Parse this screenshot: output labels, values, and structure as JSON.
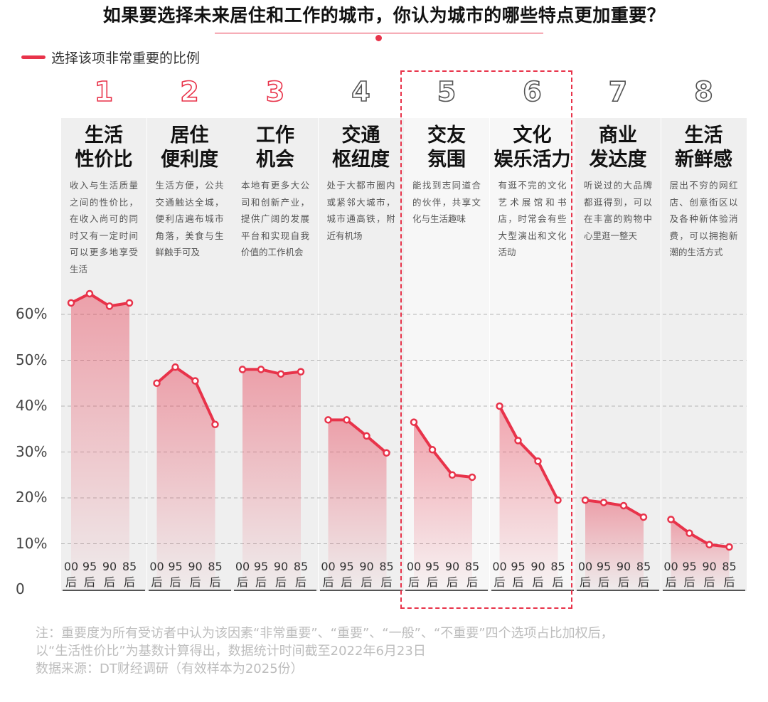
{
  "title": "如果要选择未来居住和工作的城市，你认为城市的哪些特点更加重要？",
  "colors": {
    "accent": "#e8334a",
    "panel": "#efefef",
    "panel_light": "#f7f7f7"
  },
  "chart_data": {
    "type": "line",
    "legend": "选择该项非常重要的比例",
    "legend_position": "top-left",
    "y_ticks": [
      "0",
      "10%",
      "20%",
      "30%",
      "40%",
      "50%",
      "60%"
    ],
    "ylim": [
      0,
      70
    ],
    "grid": true,
    "x_labels": [
      "00\n后",
      "95\n后",
      "90\n后",
      "85\n后"
    ],
    "highlighted_groups": [
      5,
      6
    ],
    "groups": [
      {
        "rank": "1",
        "name": "生活\n性价比",
        "desc": "收入与生活质量之间的性价比，在收入尚可的同时又有一定时间可以更多地享受生活",
        "values": [
          62.5,
          64.5,
          61.8,
          62.5
        ]
      },
      {
        "rank": "2",
        "name": "居住\n便利度",
        "desc": "生活方便，公共交通触达全城，便利店遍布城市角落，美食与生鲜触手可及",
        "values": [
          45.0,
          48.5,
          45.5,
          36.0
        ]
      },
      {
        "rank": "3",
        "name": "工作\n机会",
        "desc": "本地有更多大公司和创新产业，提供广阔的发展平台和实现自我价值的工作机会",
        "values": [
          48.0,
          48.0,
          47.0,
          47.5
        ]
      },
      {
        "rank": "4",
        "name": "交通\n枢纽度",
        "desc": "处于大都市圈内或紧邻大城市，城市通高铁，附近有机场",
        "values": [
          37.0,
          37.0,
          33.5,
          29.8
        ]
      },
      {
        "rank": "5",
        "name": "交友\n氛围",
        "desc": "能找到志同道合的伙伴，共享文化与生活趣味",
        "values": [
          36.5,
          30.5,
          25.0,
          24.5
        ]
      },
      {
        "rank": "6",
        "name": "文化\n娱乐活力",
        "desc": "有逛不完的文化艺术展馆和书店，时常会有些大型演出和文化活动",
        "values": [
          40.0,
          32.5,
          28.0,
          19.5
        ]
      },
      {
        "rank": "7",
        "name": "商业\n发达度",
        "desc": "听说过的大品牌都逛得到，可以在丰富的购物中心里逛一整天",
        "values": [
          19.5,
          19.0,
          18.3,
          15.8
        ]
      },
      {
        "rank": "8",
        "name": "生活\n新鲜感",
        "desc": "层出不穷的网红店、创意街区以及各种新体验消费，可以拥抱新潮的生活方式",
        "values": [
          15.3,
          12.3,
          9.8,
          9.3
        ]
      }
    ]
  },
  "footnote": {
    "line1": "注：重要度为所有受访者中认为该因素“非常重要”、“重要”、“一般”、“不重要”四个选项占比加权后，",
    "line2": "以“生活性价比”为基数计算得出，数据统计时间截至2022年6月23日",
    "line3": "数据来源：DT财经调研（有效样本为2025份）"
  }
}
